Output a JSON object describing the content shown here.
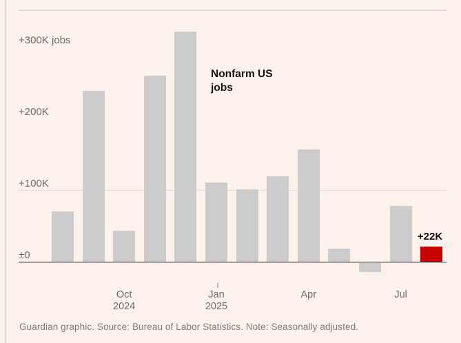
{
  "colors": {
    "background": "#fdf1ec",
    "bar": "#cccccc",
    "highlight": "#c70000",
    "grid": "#dcdcdc",
    "zero_line": "#121212",
    "text_dark": "#121212",
    "text_axis": "#6b6b6b",
    "text_footer": "#7d7d7d"
  },
  "chart_data": {
    "type": "bar",
    "annotation": "Nonfarm US jobs",
    "annotation_lines": [
      "Nonfarm US",
      "jobs"
    ],
    "unit": "thousands of jobs, monthly change",
    "categories": [
      "Aug 2024",
      "Sep 2024",
      "Oct 2024",
      "Nov 2024",
      "Dec 2024",
      "Jan 2025",
      "Feb 2025",
      "Mar 2025",
      "Apr 2025",
      "May 2025",
      "Jun 2025",
      "Jul 2025",
      "Aug 2025"
    ],
    "values": [
      71,
      240,
      44,
      261,
      323,
      111,
      102,
      120,
      158,
      19,
      -13,
      79,
      22
    ],
    "highlight_index": 12,
    "highlight_label": "+22K",
    "y_ticks": [
      {
        "label": "+300K jobs",
        "value": 300
      },
      {
        "label": "+200K",
        "value": 200
      },
      {
        "label": "+100K",
        "value": 100
      },
      {
        "label": "±0",
        "value": 0
      }
    ],
    "gridlines_at": [
      100,
      0
    ],
    "x_ticks": [
      {
        "label_lines": [
          "Oct",
          "2024"
        ],
        "index": 2,
        "tick_mark": false
      },
      {
        "label_lines": [
          "Jan",
          "2025"
        ],
        "index": 5,
        "tick_mark": true
      },
      {
        "label_lines": [
          "Apr"
        ],
        "index": 8,
        "tick_mark": false
      },
      {
        "label_lines": [
          "Jul"
        ],
        "index": 11,
        "tick_mark": false
      }
    ],
    "ylim": [
      -50,
      353
    ],
    "legend": "none"
  },
  "footer": {
    "text": "Guardian graphic. Source: Bureau of Labor Statistics. Note: Seasonally adjusted."
  }
}
